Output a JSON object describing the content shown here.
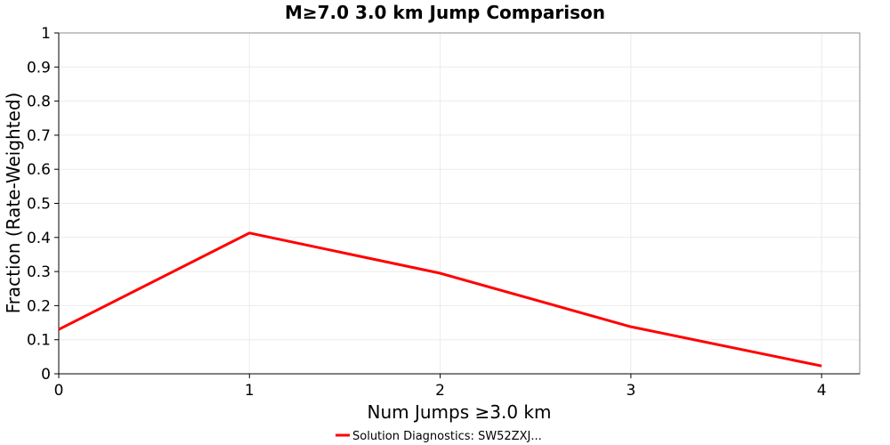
{
  "chart_data": {
    "type": "line",
    "title": "M≥7.0 3.0 km Jump Comparison",
    "xlabel": "Num Jumps ≥3.0 km",
    "ylabel": "Fraction (Rate-Weighted)",
    "xlim": [
      0,
      4.2
    ],
    "ylim": [
      0,
      1
    ],
    "xticks": [
      "0",
      "1",
      "2",
      "3",
      "4"
    ],
    "yticks": [
      "0",
      "0.1",
      "0.2",
      "0.3",
      "0.4",
      "0.5",
      "0.6",
      "0.7",
      "0.8",
      "0.9",
      "1"
    ],
    "grid": true,
    "legend_position": "bottom-center",
    "series": [
      {
        "name": "Solution Diagnostics: SW52ZXJ...",
        "color": "#ff0000",
        "x": [
          0,
          1,
          2,
          3,
          4
        ],
        "y": [
          0.13,
          0.413,
          0.295,
          0.138,
          0.023
        ]
      }
    ]
  }
}
